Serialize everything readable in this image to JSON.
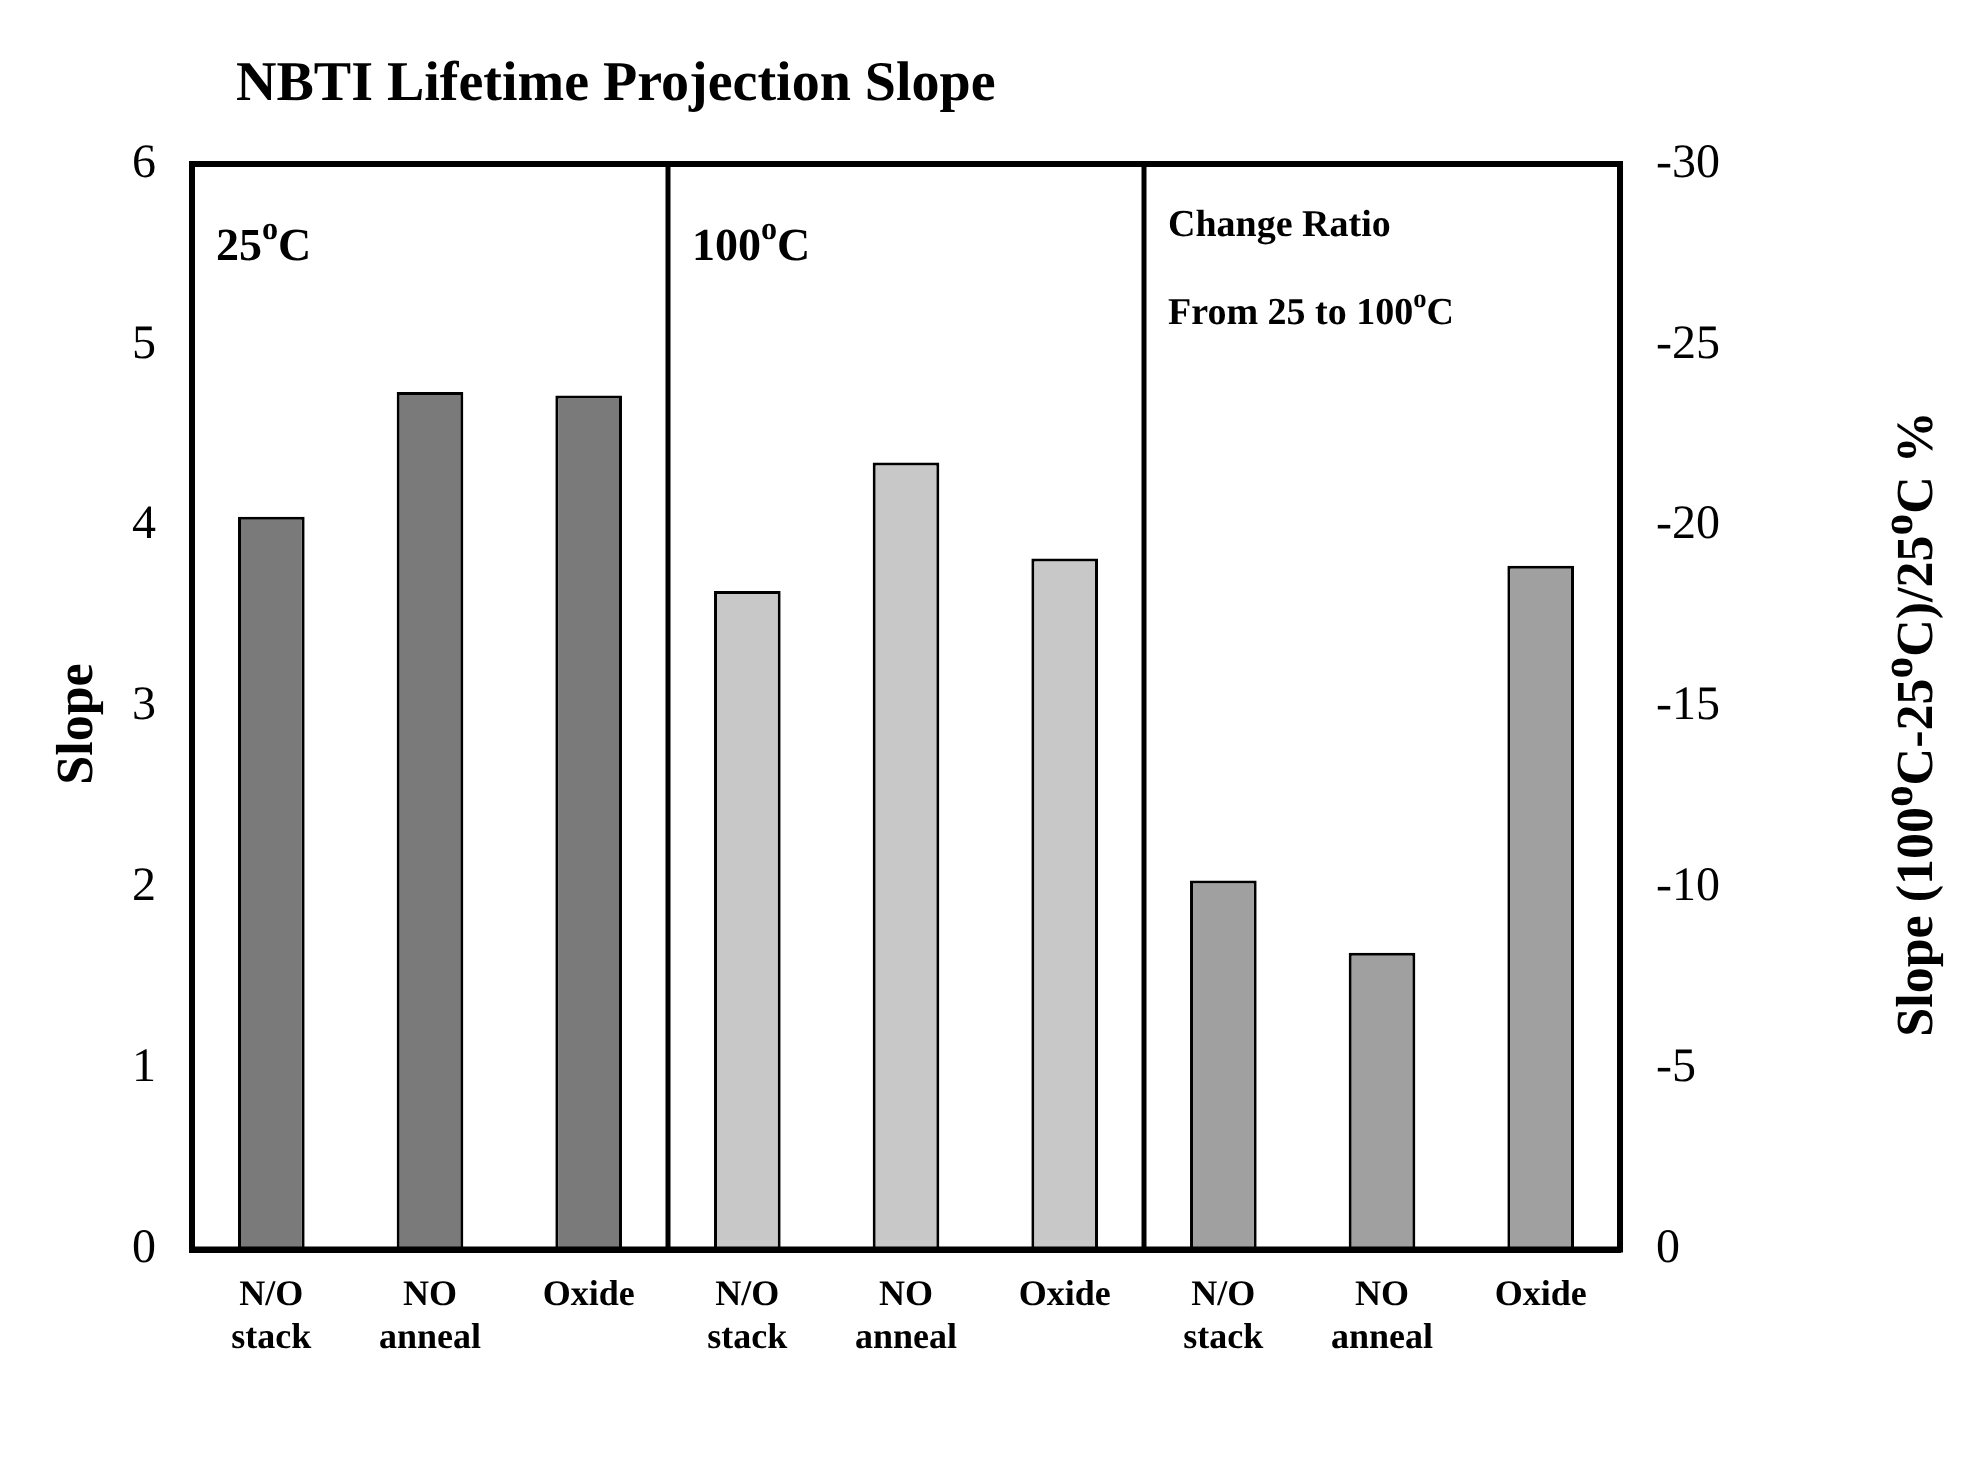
{
  "chart_data": {
    "type": "bar",
    "title": "NBTI Lifetime Projection Slope",
    "xlabel": null,
    "ylabel": "Slope",
    "y2label": "Slope (100$^{o}$C-25$^{o}$C)/25$^{o}$C  %",
    "categories": [
      "N/O\nstack",
      "NO\nanneal",
      "Oxide",
      "N/O\nstack",
      "NO\nanneal",
      "Oxide",
      "N/O\nstack",
      "NO\nanneal",
      "Oxide"
    ],
    "series": [
      {
        "color": "#7a7a7a",
        "values": [
          4.05,
          4.74,
          4.72,
          null,
          null,
          null,
          null,
          null,
          null
        ]
      },
      {
        "color": "#c8c8c8",
        "values": [
          null,
          null,
          null,
          3.64,
          4.35,
          3.82,
          null,
          null,
          null
        ]
      },
      {
        "color": "#a0a0a0",
        "axis": "y2",
        "values": [
          null,
          null,
          null,
          null,
          null,
          null,
          -10.2,
          -8.2,
          -18.9
        ]
      }
    ],
    "ylim": [
      0,
      6
    ],
    "yticks": [
      0,
      1,
      2,
      3,
      4,
      5,
      6
    ],
    "y2lim": [
      0,
      -30
    ],
    "y2ticks": [
      0,
      -5,
      -10,
      -15,
      -20,
      -25,
      -30
    ],
    "annotations": [
      "25$^{o}$C",
      "100$^{o}$C",
      "Change Ratio\nFrom 25 to 100$^{o}$C"
    ],
    "grid": false,
    "legend": false
  }
}
